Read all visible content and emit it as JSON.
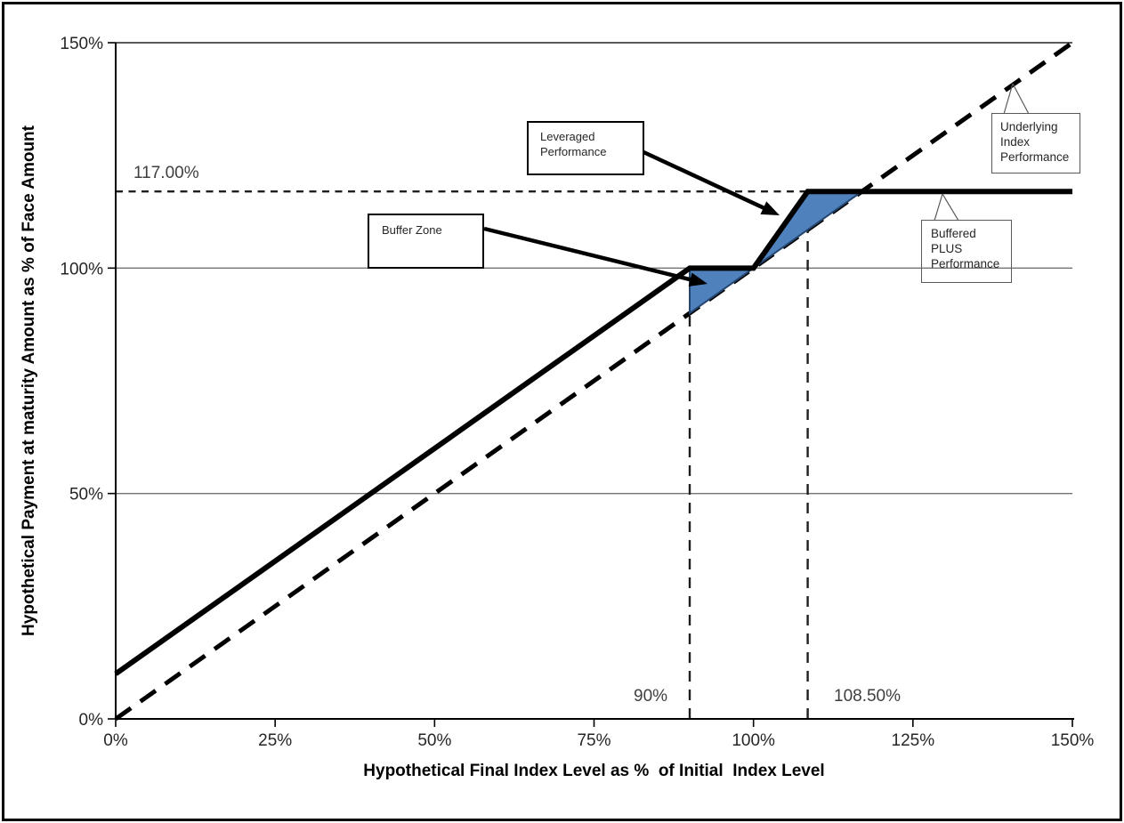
{
  "chart_data": {
    "type": "line",
    "title": "",
    "xlabel": "Hypothetical Final Index Level as %  of Initial  Index Level",
    "ylabel": "Hypothetical Payment at maturity Amount as % of Face Amount",
    "xlim": [
      0,
      150
    ],
    "ylim": [
      0,
      150
    ],
    "grid": "horizontal-only",
    "legend": "none (labels via callouts)",
    "x_ticks": [
      {
        "value": 0,
        "label": "0%"
      },
      {
        "value": 25,
        "label": "25%"
      },
      {
        "value": 50,
        "label": "50%"
      },
      {
        "value": 75,
        "label": "75%"
      },
      {
        "value": 100,
        "label": "100%"
      },
      {
        "value": 125,
        "label": "125%"
      },
      {
        "value": 150,
        "label": "150%"
      }
    ],
    "y_ticks": [
      {
        "value": 0,
        "label": "0%"
      },
      {
        "value": 50,
        "label": "50%"
      },
      {
        "value": 100,
        "label": "100%"
      },
      {
        "value": 150,
        "label": "150%"
      }
    ],
    "gridlines": {
      "y_values": [
        50,
        100
      ],
      "y_top": 150
    },
    "series": [
      {
        "name": "Underlying Index Performance",
        "line_style": "dashed",
        "stroke": "#000000",
        "width": 5,
        "points": [
          [
            0,
            0
          ],
          [
            150,
            150
          ]
        ]
      },
      {
        "name": "Buffered PLUS Performance",
        "line_style": "solid",
        "stroke": "#000000",
        "width": 6,
        "points": [
          [
            0,
            10
          ],
          [
            90,
            100
          ],
          [
            100,
            100
          ],
          [
            108.5,
            117
          ],
          [
            150,
            117
          ]
        ]
      }
    ],
    "guide_lines": [
      {
        "orientation": "horizontal",
        "style": "dotted",
        "y": 117,
        "x_from": 0,
        "x_to": 108.5,
        "label": "117.00%"
      },
      {
        "orientation": "vertical",
        "style": "dashed",
        "x": 90,
        "y_from": 0,
        "y_to": 90,
        "label": "90%"
      },
      {
        "orientation": "vertical",
        "style": "dashed",
        "x": 108.5,
        "y_from": 0,
        "y_to": 108.5,
        "label": "108.50%"
      }
    ],
    "shaded_regions": [
      {
        "name": "buffer-zone-triangle",
        "points": [
          [
            90,
            90
          ],
          [
            90,
            100
          ],
          [
            100,
            100
          ]
        ]
      },
      {
        "name": "leveraged-zone-triangle",
        "points": [
          [
            100,
            100
          ],
          [
            108.5,
            117
          ],
          [
            117,
            117
          ]
        ]
      }
    ],
    "callouts": [
      {
        "id": "leveraged",
        "lines": [
          "Leveraged",
          "Performance"
        ],
        "arrow": {
          "from": [
            82.47,
            125.92
          ],
          "to": [
            104.09,
            111.71
          ]
        }
      },
      {
        "id": "buffer",
        "lines": [
          "Buffer Zone"
        ],
        "arrow": {
          "from": [
            57.77,
            108.75
          ],
          "to": [
            92.79,
            96.51
          ]
        }
      },
      {
        "id": "underlying",
        "lines": [
          "Underlying",
          "Index",
          "Performance"
        ],
        "tail": {
          "apex": [
            140.65,
            140.92
          ],
          "base": [
            [
              139.26,
              134.21
            ],
            [
              143.16,
              134.21
            ]
          ]
        }
      },
      {
        "id": "buffered",
        "lines": [
          "Buffered PLUS",
          "Performance"
        ],
        "tail": {
          "apex": [
            129.63,
            116.45
          ],
          "base": [
            [
              128.37,
              110.53
            ],
            [
              132.14,
              110.53
            ]
          ]
        }
      }
    ],
    "colors": {
      "shade_fill": "#4f81bd",
      "shade_edge": "#24456e",
      "line": "#000000",
      "grid": "#737373",
      "grid_top": "#595959",
      "guide": "#1f1f1f",
      "axis": "#000000",
      "tick_text": "#262626",
      "annotation_text": "#3f3f3f"
    }
  }
}
